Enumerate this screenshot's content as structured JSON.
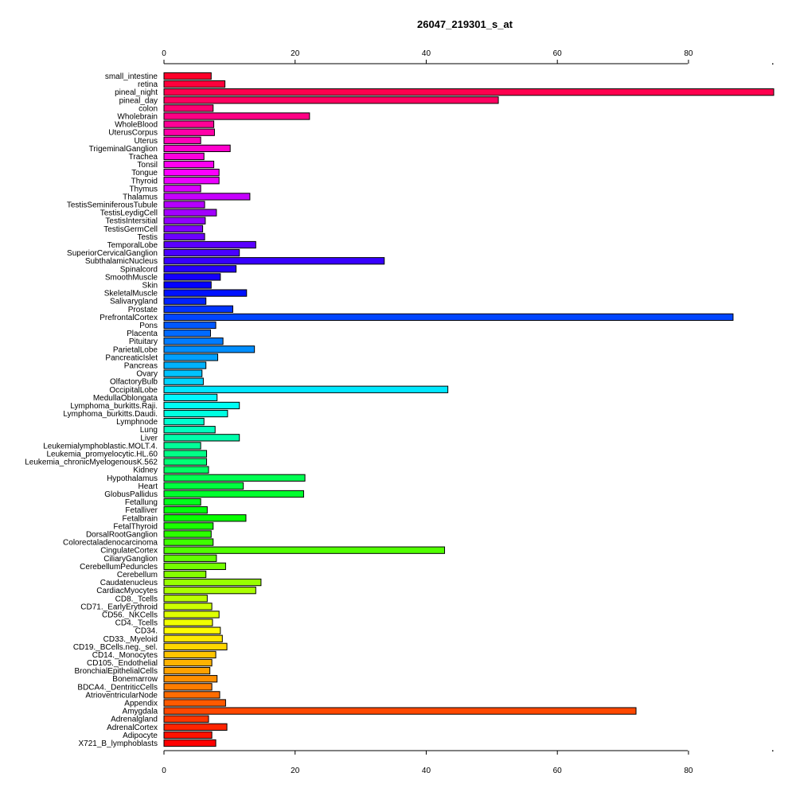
{
  "chart_data": {
    "type": "bar",
    "orientation": "horizontal",
    "title": "26047_219301_s_at",
    "xlabel": "",
    "ylabel": "",
    "xlim": [
      0,
      93
    ],
    "xticks": [
      "0",
      "20",
      "40",
      "60",
      "80"
    ],
    "grid": false,
    "categories": [
      "small_intestine",
      "retina",
      "pineal_night",
      "pineal_day",
      "colon",
      "Wholebrain",
      "WholeBlood",
      "UterusCorpus",
      "Uterus",
      "TrigeminalGanglion",
      "Trachea",
      "Tonsil",
      "Tongue",
      "Thyroid",
      "Thymus",
      "Thalamus",
      "TestisSeminiferousTubule",
      "TestisLeydigCell",
      "TestisIntersitial",
      "TestisGermCell",
      "Testis",
      "TemporalLobe",
      "SuperiorCervicalGanglion",
      "SubthalamicNucleus",
      "Spinalcord",
      "SmoothMuscle",
      "Skin",
      "SkeletalMuscle",
      "Salivarygland",
      "Prostate",
      "PrefrontalCortex",
      "Pons",
      "Placenta",
      "Pituitary",
      "ParietalLobe",
      "PancreaticIslet",
      "Pancreas",
      "Ovary",
      "OlfactoryBulb",
      "OccipitalLobe",
      "MedullaOblongata",
      "Lymphoma_burkitts.Raji.",
      "Lymphoma_burkitts.Daudi.",
      "Lymphnode",
      "Lung",
      "Liver",
      "Leukemialymphoblastic.MOLT.4.",
      "Leukemia_promyelocytic.HL.60",
      "Leukemia_chronicMyelogenousK.562",
      "Kidney",
      "Hypothalamus",
      "Heart",
      "GlobusPallidus",
      "Fetallung",
      "Fetalliver",
      "Fetalbrain",
      "FetalThyroid",
      "DorsalRootGanglion",
      "Colorectaladenocarcinoma",
      "CingulateCortex",
      "CiliaryGanglion",
      "CerebellumPeduncles",
      "Cerebellum",
      "Caudatenucleus",
      "CardiacMyocytes",
      "CD8._Tcells",
      "CD71._EarlyErythroid",
      "CD56._NKCells",
      "CD4._Tcells",
      "CD34.",
      "CD33._Myeloid",
      "CD19._BCells.neg._sel.",
      "CD14._Monocytes",
      "CD105._Endothelial",
      "BronchialEpithelialCells",
      "Bonemarrow",
      "BDCA4._DentriticCells",
      "AtrioventricularNode",
      "Appendix",
      "Amygdala",
      "Adrenalgland",
      "AdrenalCortex",
      "Adipocyte",
      "X721_B_lymphoblasts"
    ],
    "values": [
      7.2,
      9.3,
      93.0,
      51.0,
      7.5,
      22.2,
      7.6,
      7.7,
      5.6,
      10.1,
      6.1,
      7.6,
      8.4,
      8.4,
      5.6,
      13.1,
      6.2,
      8.0,
      6.3,
      5.9,
      6.2,
      14.0,
      11.5,
      33.6,
      11.0,
      8.6,
      7.2,
      12.6,
      6.4,
      10.5,
      86.8,
      7.9,
      7.1,
      9.0,
      13.8,
      8.2,
      6.4,
      5.8,
      6.0,
      43.3,
      8.1,
      11.5,
      9.7,
      6.1,
      7.8,
      11.5,
      5.6,
      6.5,
      6.5,
      6.8,
      21.5,
      12.1,
      21.3,
      5.6,
      6.6,
      12.5,
      7.5,
      7.2,
      7.5,
      42.8,
      8.0,
      9.4,
      6.4,
      14.8,
      14.0,
      6.6,
      7.3,
      8.4,
      7.4,
      8.6,
      8.9,
      9.6,
      7.9,
      7.3,
      7.0,
      8.1,
      7.3,
      8.5,
      9.4,
      72.0,
      6.8,
      9.6,
      7.3,
      7.9
    ]
  }
}
